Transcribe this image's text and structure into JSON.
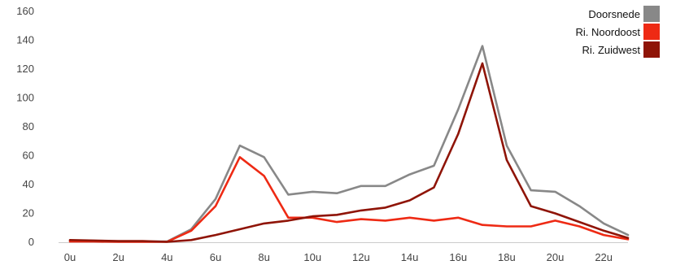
{
  "chart_data": {
    "type": "line",
    "title": "",
    "xlabel": "",
    "ylabel": "",
    "x": [
      0,
      1,
      2,
      3,
      4,
      5,
      6,
      7,
      8,
      9,
      10,
      11,
      12,
      13,
      14,
      15,
      16,
      17,
      18,
      19,
      20,
      21,
      22,
      23
    ],
    "x_tick_values": [
      0,
      2,
      4,
      6,
      8,
      10,
      12,
      14,
      16,
      18,
      20,
      22
    ],
    "x_tick_labels": [
      "0u",
      "2u",
      "4u",
      "6u",
      "8u",
      "10u",
      "12u",
      "14u",
      "16u",
      "18u",
      "20u",
      "22u"
    ],
    "ylim": [
      0,
      160
    ],
    "y_ticks": [
      0,
      20,
      40,
      60,
      80,
      100,
      120,
      140,
      160
    ],
    "grid": false,
    "legend_position": "top-right",
    "series": [
      {
        "name": "Doorsnede",
        "color": "#888888",
        "values": [
          1,
          1,
          0.5,
          0.5,
          0.5,
          9,
          30,
          67,
          59,
          33,
          35,
          34,
          39,
          39,
          47,
          53,
          92,
          136,
          67,
          36,
          35,
          25,
          13,
          5
        ]
      },
      {
        "name": "Ri. Noordoost",
        "color": "#ee2a14",
        "values": [
          0.5,
          0.5,
          0.3,
          0.3,
          0.3,
          8,
          25,
          59,
          46,
          17,
          17,
          14,
          16,
          15,
          17,
          15,
          17,
          12,
          11,
          11,
          15,
          11,
          5,
          2
        ]
      },
      {
        "name": "Ri. Zuidwest",
        "color": "#8f1407",
        "values": [
          1.5,
          1.2,
          0.8,
          0.8,
          0.3,
          1.5,
          5,
          9,
          13,
          15,
          18,
          19,
          22,
          24,
          29,
          38,
          75,
          124,
          57,
          25,
          20,
          14,
          8,
          3
        ]
      }
    ]
  }
}
